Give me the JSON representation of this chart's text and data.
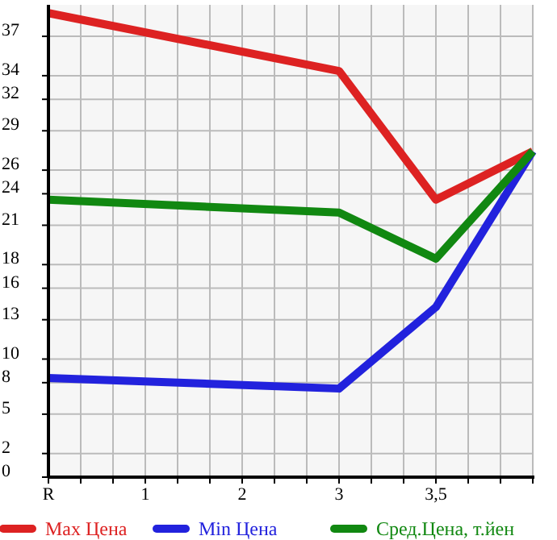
{
  "chart_data": {
    "type": "line",
    "categories": [
      "R",
      "1",
      "2",
      "3",
      "3,5",
      null
    ],
    "series": [
      {
        "name": "Max Цена",
        "color": "#dd2222",
        "values": [
          39.3,
          null,
          null,
          34.4,
          23.5,
          27.6
        ]
      },
      {
        "name": "Min Цена",
        "color": "#2222dd",
        "values": [
          8.4,
          null,
          null,
          7.5,
          14.4,
          27.6
        ]
      },
      {
        "name": "Сред.Цена, т.йен",
        "color": "#118811",
        "values": [
          23.5,
          null,
          null,
          22.4,
          18.5,
          27.6
        ]
      }
    ],
    "ylim": [
      0,
      40
    ],
    "yticks": [
      0,
      2,
      {
        "value": 5.333,
        "label": "5"
      },
      8,
      10,
      {
        "value": 13.333,
        "label": "13"
      },
      16,
      18,
      {
        "value": 21.333,
        "label": "21"
      },
      24,
      26,
      {
        "value": 29.333,
        "label": "29"
      },
      32,
      34,
      {
        "value": 37.333,
        "label": "37"
      }
    ],
    "grid": true,
    "legend": "bottom",
    "marker": "none",
    "line_style": "solid"
  }
}
